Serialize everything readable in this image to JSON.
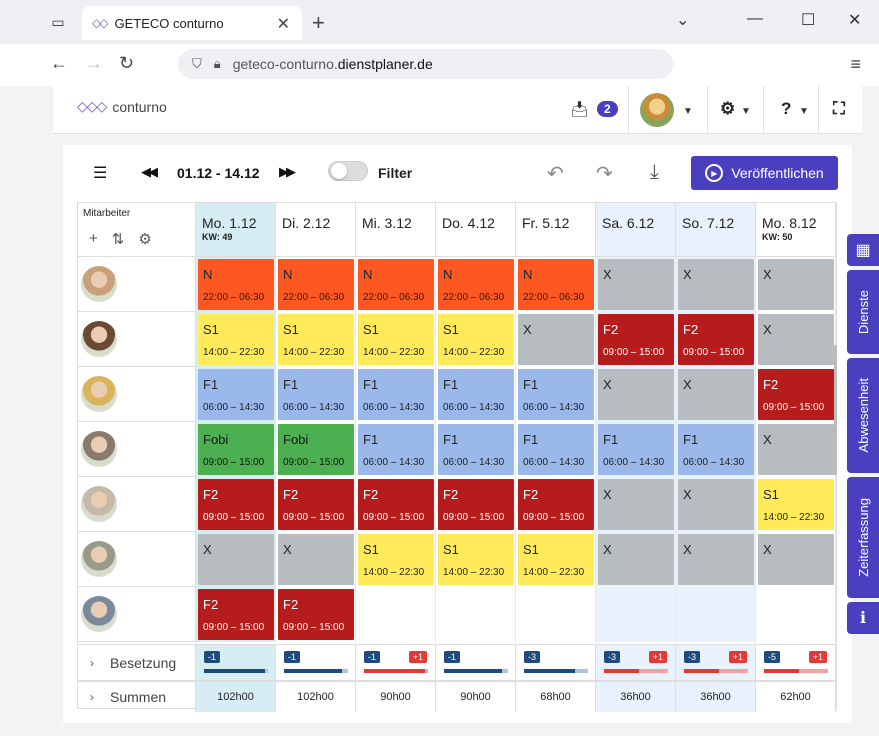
{
  "browser": {
    "tab_title": "GETECO conturno",
    "url_host_prefix": "geteco-conturno.",
    "url_host_main": "dienstplaner.de"
  },
  "header": {
    "brand": "conturno",
    "inbox_count": "2"
  },
  "toolbar": {
    "date_range": "01.12 - 14.12",
    "filter_label": "Filter",
    "publish_label": "Veröffentlichen"
  },
  "grid": {
    "employee_header": "Mitarbeiter",
    "days": [
      {
        "label": "Mo. 1.12",
        "kw": "KW: 49",
        "bg": "#d6edf3"
      },
      {
        "label": "Di. 2.12",
        "kw": "",
        "bg": "#ffffff"
      },
      {
        "label": "Mi. 3.12",
        "kw": "",
        "bg": "#ffffff"
      },
      {
        "label": "Do. 4.12",
        "kw": "",
        "bg": "#ffffff"
      },
      {
        "label": "Fr. 5.12",
        "kw": "",
        "bg": "#ffffff"
      },
      {
        "label": "Sa. 6.12",
        "kw": "",
        "bg": "#e8f1fc"
      },
      {
        "label": "So. 7.12",
        "kw": "",
        "bg": "#e8f1fc"
      },
      {
        "label": "Mo. 8.12",
        "kw": "KW: 50",
        "bg": "#ffffff"
      }
    ],
    "employees": [
      {
        "avatar_color": "#c9a07a",
        "shifts": [
          {
            "code": "N",
            "time": "22:00 – 06:30",
            "type": "N"
          },
          {
            "code": "N",
            "time": "22:00 – 06:30",
            "type": "N"
          },
          {
            "code": "N",
            "time": "22:00 – 06:30",
            "type": "N"
          },
          {
            "code": "N",
            "time": "22:00 – 06:30",
            "type": "N"
          },
          {
            "code": "N",
            "time": "22:00 – 06:30",
            "type": "N"
          },
          {
            "code": "X",
            "time": "",
            "type": "X"
          },
          {
            "code": "X",
            "time": "",
            "type": "X"
          },
          {
            "code": "X",
            "time": "",
            "type": "X"
          }
        ]
      },
      {
        "avatar_color": "#6b4a33",
        "shifts": [
          {
            "code": "S1",
            "time": "14:00 – 22:30",
            "type": "S1"
          },
          {
            "code": "S1",
            "time": "14:00 – 22:30",
            "type": "S1"
          },
          {
            "code": "S1",
            "time": "14:00 – 22:30",
            "type": "S1"
          },
          {
            "code": "S1",
            "time": "14:00 – 22:30",
            "type": "S1"
          },
          {
            "code": "X",
            "time": "",
            "type": "X"
          },
          {
            "code": "F2",
            "time": "09:00 – 15:00",
            "type": "F2"
          },
          {
            "code": "F2",
            "time": "09:00 – 15:00",
            "type": "F2"
          },
          {
            "code": "X",
            "time": "",
            "type": "X"
          }
        ]
      },
      {
        "avatar_color": "#d9b45a",
        "shifts": [
          {
            "code": "F1",
            "time": "06:00 – 14:30",
            "type": "F1"
          },
          {
            "code": "F1",
            "time": "06:00 – 14:30",
            "type": "F1"
          },
          {
            "code": "F1",
            "time": "06:00 – 14:30",
            "type": "F1"
          },
          {
            "code": "F1",
            "time": "06:00 – 14:30",
            "type": "F1"
          },
          {
            "code": "F1",
            "time": "06:00 – 14:30",
            "type": "F1"
          },
          {
            "code": "X",
            "time": "",
            "type": "X"
          },
          {
            "code": "X",
            "time": "",
            "type": "X"
          },
          {
            "code": "F2",
            "time": "09:00 – 15:00",
            "type": "F2"
          }
        ]
      },
      {
        "avatar_color": "#8a7a6a",
        "shifts": [
          {
            "code": "Fobi",
            "time": "09:00 – 15:00",
            "type": "Fobi"
          },
          {
            "code": "Fobi",
            "time": "09:00 – 15:00",
            "type": "Fobi"
          },
          {
            "code": "F1",
            "time": "06:00 – 14:30",
            "type": "F1"
          },
          {
            "code": "F1",
            "time": "06:00 – 14:30",
            "type": "F1"
          },
          {
            "code": "F1",
            "time": "06:00 – 14:30",
            "type": "F1"
          },
          {
            "code": "F1",
            "time": "06:00 – 14:30",
            "type": "F1"
          },
          {
            "code": "F1",
            "time": "06:00 – 14:30",
            "type": "F1"
          },
          {
            "code": "X",
            "time": "",
            "type": "X"
          }
        ]
      },
      {
        "avatar_color": "#c7b9a8",
        "shifts": [
          {
            "code": "F2",
            "time": "09:00 – 15:00",
            "type": "F2"
          },
          {
            "code": "F2",
            "time": "09:00 – 15:00",
            "type": "F2"
          },
          {
            "code": "F2",
            "time": "09:00 – 15:00",
            "type": "F2"
          },
          {
            "code": "F2",
            "time": "09:00 – 15:00",
            "type": "F2"
          },
          {
            "code": "F2",
            "time": "09:00 – 15:00",
            "type": "F2"
          },
          {
            "code": "X",
            "time": "",
            "type": "X"
          },
          {
            "code": "X",
            "time": "",
            "type": "X"
          },
          {
            "code": "S1",
            "time": "14:00 – 22:30",
            "type": "S1"
          }
        ]
      },
      {
        "avatar_color": "#9a9a8a",
        "shifts": [
          {
            "code": "X",
            "time": "",
            "type": "X"
          },
          {
            "code": "X",
            "time": "",
            "type": "X"
          },
          {
            "code": "S1",
            "time": "14:00 – 22:30",
            "type": "S1"
          },
          {
            "code": "S1",
            "time": "14:00 – 22:30",
            "type": "S1"
          },
          {
            "code": "S1",
            "time": "14:00 – 22:30",
            "type": "S1"
          },
          {
            "code": "X",
            "time": "",
            "type": "X"
          },
          {
            "code": "X",
            "time": "",
            "type": "X"
          },
          {
            "code": "X",
            "time": "",
            "type": "X"
          }
        ]
      },
      {
        "avatar_color": "#7a8a9a",
        "shifts": [
          {
            "code": "F2",
            "time": "09:00 – 15:00",
            "type": "F2"
          },
          {
            "code": "F2",
            "time": "09:00 – 15:00",
            "type": "F2"
          },
          null,
          null,
          null,
          null,
          null,
          null
        ]
      }
    ],
    "shift_colors": {
      "N": {
        "bg": "#ff5722",
        "fg": "#222222"
      },
      "S1": {
        "bg": "#ffeb5a",
        "fg": "#222222"
      },
      "F1": {
        "bg": "#9bb8ea",
        "fg": "#222222"
      },
      "F2": {
        "bg": "#b71c1c",
        "fg": "#ffffff"
      },
      "Fobi": {
        "bg": "#4caf50",
        "fg": "#111111"
      },
      "X": {
        "bg": "#b7bcc1",
        "fg": "#222222"
      }
    },
    "besetzung_label": "Besetzung",
    "summen_label": "Summen",
    "besetzung": [
      {
        "left": "-1",
        "right": "",
        "fill": 0.95,
        "fill_color": "#1f4a7c"
      },
      {
        "left": "-1",
        "right": "",
        "fill": 0.9,
        "fill_color": "#1f4a7c"
      },
      {
        "left": "-1",
        "right": "+1",
        "fill": 0.95,
        "fill_color": "#e53935"
      },
      {
        "left": "-1",
        "right": "",
        "fill": 0.9,
        "fill_color": "#1f4a7c"
      },
      {
        "left": "-3",
        "right": "",
        "fill": 0.8,
        "fill_color": "#1f4a7c"
      },
      {
        "left": "-3",
        "right": "+1",
        "fill": 0.55,
        "fill_color": "#e53935"
      },
      {
        "left": "-3",
        "right": "+1",
        "fill": 0.55,
        "fill_color": "#e53935"
      },
      {
        "left": "-5",
        "right": "+1",
        "fill": 0.55,
        "fill_color": "#e53935"
      }
    ],
    "summen": [
      "102h00",
      "102h00",
      "90h00",
      "90h00",
      "68h00",
      "36h00",
      "36h00",
      "62h00"
    ]
  },
  "rail": {
    "dienste": "Dienste",
    "abwesenheit": "Abwesenheit",
    "zeiterfassung": "Zeiterfassung"
  },
  "colors": {
    "accent": "#4a3fbf",
    "today_bg": "#d6edf3",
    "weekend_bg": "#e8f1fc"
  }
}
